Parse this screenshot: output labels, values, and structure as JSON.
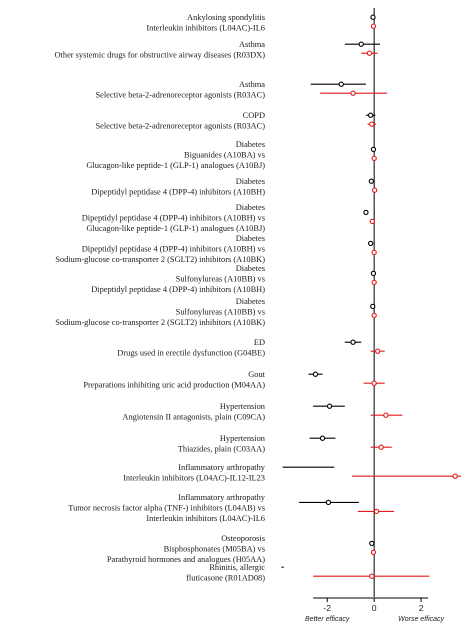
{
  "chart_data": {
    "type": "forest",
    "x_axis": {
      "range": [
        -3.5,
        3.7
      ],
      "ticks": [
        -2,
        0,
        2
      ],
      "tick_labels": [
        "-2",
        "0",
        "2"
      ],
      "left_note": "Better efficacy",
      "right_note": "Worse efficacy"
    },
    "series": [
      {
        "marker": "open-circle",
        "color": "#000000"
      },
      {
        "marker": "open-circle",
        "color": "#e41a1c"
      }
    ],
    "rows": [
      {
        "condition": "Ankylosing spondylitis",
        "drug": [
          "Interleukin inhibitors (L04AC)-IL6"
        ],
        "black": {
          "est": -0.05,
          "lo": -0.12,
          "hi": 0.02
        },
        "red": {
          "est": -0.03,
          "lo": -0.08,
          "hi": 0.02
        }
      },
      {
        "condition": "Asthma",
        "drug": [
          "Other systemic drugs for obstructive airway diseases (R03DX)"
        ],
        "black": {
          "est": -0.55,
          "lo": -1.25,
          "hi": 0.25
        },
        "red": {
          "est": -0.2,
          "lo": -0.55,
          "hi": 0.15
        }
      },
      {
        "condition": "Asthma",
        "drug": [
          "Selective beta-2-adrenoreceptor agonists (R03AC)"
        ],
        "black": {
          "est": -1.4,
          "lo": -2.7,
          "hi": -0.35
        },
        "red": {
          "est": -0.9,
          "lo": -2.3,
          "hi": 0.55
        }
      },
      {
        "condition": "COPD",
        "drug": [
          "Selective beta-2-adrenoreceptor agonists (R03AC)"
        ],
        "black": {
          "est": -0.15,
          "lo": -0.35,
          "hi": 0.05
        },
        "red": {
          "est": -0.1,
          "lo": -0.28,
          "hi": 0.08
        }
      },
      {
        "condition": "Diabetes",
        "drug": [
          "Biguanides (A10BA) vs",
          "Glucagon-like peptide-1 (GLP-1) analogues (A10BJ)"
        ],
        "black": {
          "est": -0.03,
          "lo": -0.09,
          "hi": 0.03
        },
        "red": {
          "est": 0.0,
          "lo": -0.05,
          "hi": 0.05
        }
      },
      {
        "condition": "Diabetes",
        "drug": [
          "Dipeptidyl peptidase 4 (DPP-4) inhibitors (A10BH)"
        ],
        "black": {
          "est": -0.12,
          "lo": -0.17,
          "hi": -0.07
        },
        "red": {
          "est": 0.02,
          "lo": -0.03,
          "hi": 0.07
        }
      },
      {
        "condition": "Diabetes",
        "drug": [
          "Dipeptidyl peptidase 4 (DPP-4) inhibitors (A10BH) vs",
          "Glucagon-like peptide-1 (GLP-1) analogues (A10BJ)"
        ],
        "black": {
          "est": -0.35,
          "lo": -0.4,
          "hi": -0.3
        },
        "red": {
          "est": -0.08,
          "lo": -0.13,
          "hi": -0.03
        }
      },
      {
        "condition": "Diabetes",
        "drug": [
          "Dipeptidyl peptidase 4 (DPP-4) inhibitors (A10BH) vs",
          "Sodium-glucose co-transporter 2 (SGLT2) inhibitors (A10BK)"
        ],
        "black": {
          "est": -0.15,
          "lo": -0.2,
          "hi": -0.1
        },
        "red": {
          "est": 0.0,
          "lo": -0.05,
          "hi": 0.05
        }
      },
      {
        "condition": "Diabetes",
        "drug": [
          "Sulfonylureas (A10BB) vs",
          "Dipeptidyl peptidase 4 (DPP-4) inhibitors (A10BH)"
        ],
        "black": {
          "est": -0.03,
          "lo": -0.08,
          "hi": 0.02
        },
        "red": {
          "est": 0.0,
          "lo": -0.05,
          "hi": 0.05
        }
      },
      {
        "condition": "Diabetes",
        "drug": [
          "Sulfonylureas (A10BB) vs",
          "Sodium-glucose co-transporter 2 (SGLT2) inhibitors (A10BK)"
        ],
        "black": {
          "est": -0.06,
          "lo": -0.11,
          "hi": -0.01
        },
        "red": {
          "est": 0.0,
          "lo": -0.05,
          "hi": 0.05
        }
      },
      {
        "condition": "ED",
        "drug": [
          "Drugs used in erectile dysfunction (G04BE)"
        ],
        "black": {
          "est": -0.9,
          "lo": -1.25,
          "hi": -0.55
        },
        "red": {
          "est": 0.15,
          "lo": -0.15,
          "hi": 0.45
        }
      },
      {
        "condition": "Gout",
        "drug": [
          "Preparations inhibiting uric acid production (M04AA)"
        ],
        "black": {
          "est": -2.5,
          "lo": -2.8,
          "hi": -2.2
        },
        "red": {
          "est": 0.0,
          "lo": -0.45,
          "hi": 0.45
        }
      },
      {
        "condition": "Hypertension",
        "drug": [
          "Angiotensin II antagonists, plain (C09CA)"
        ],
        "black": {
          "est": -1.9,
          "lo": -2.6,
          "hi": -1.25
        },
        "red": {
          "est": 0.5,
          "lo": -0.15,
          "hi": 1.2
        }
      },
      {
        "condition": "Hypertension",
        "drug": [
          "Thiazides, plain (C03AA)"
        ],
        "black": {
          "est": -2.2,
          "lo": -2.75,
          "hi": -1.65
        },
        "red": {
          "est": 0.3,
          "lo": -0.15,
          "hi": 0.75
        }
      },
      {
        "condition": "Inflammatory arthropathy",
        "drug": [
          "Interleukin inhibitors (L04AC)-IL12-IL23"
        ],
        "black": {
          "est": null,
          "lo": -3.9,
          "hi": -1.7
        },
        "red": {
          "est": 3.45,
          "lo": -0.95,
          "hi": 3.7
        }
      },
      {
        "condition": "Inflammatory arthropathy",
        "drug": [
          "Tumor necrosis factor alpha (TNF-) inhibitors (L04AB) vs",
          "Interleukin inhibitors (L04AC)-IL6"
        ],
        "black": {
          "est": -1.95,
          "lo": -3.2,
          "hi": -0.65
        },
        "red": {
          "est": 0.1,
          "lo": -0.7,
          "hi": 0.85
        }
      },
      {
        "condition": "Osteoporosis",
        "drug": [
          "Bisphosphonates (M05BA) vs",
          "Parathyroid hormones and analogues (H05AA)"
        ],
        "black": {
          "est": -0.1,
          "lo": -0.15,
          "hi": -0.05
        },
        "red": {
          "est": -0.03,
          "lo": -0.08,
          "hi": 0.02
        }
      },
      {
        "condition": "Rhinitis, allergic",
        "drug": [
          "fluticasone (R01AD08)"
        ],
        "black": {
          "est": null,
          "lo": -3.95,
          "hi": -3.85
        },
        "red": {
          "est": -0.1,
          "lo": -2.6,
          "hi": 2.35
        }
      }
    ]
  }
}
